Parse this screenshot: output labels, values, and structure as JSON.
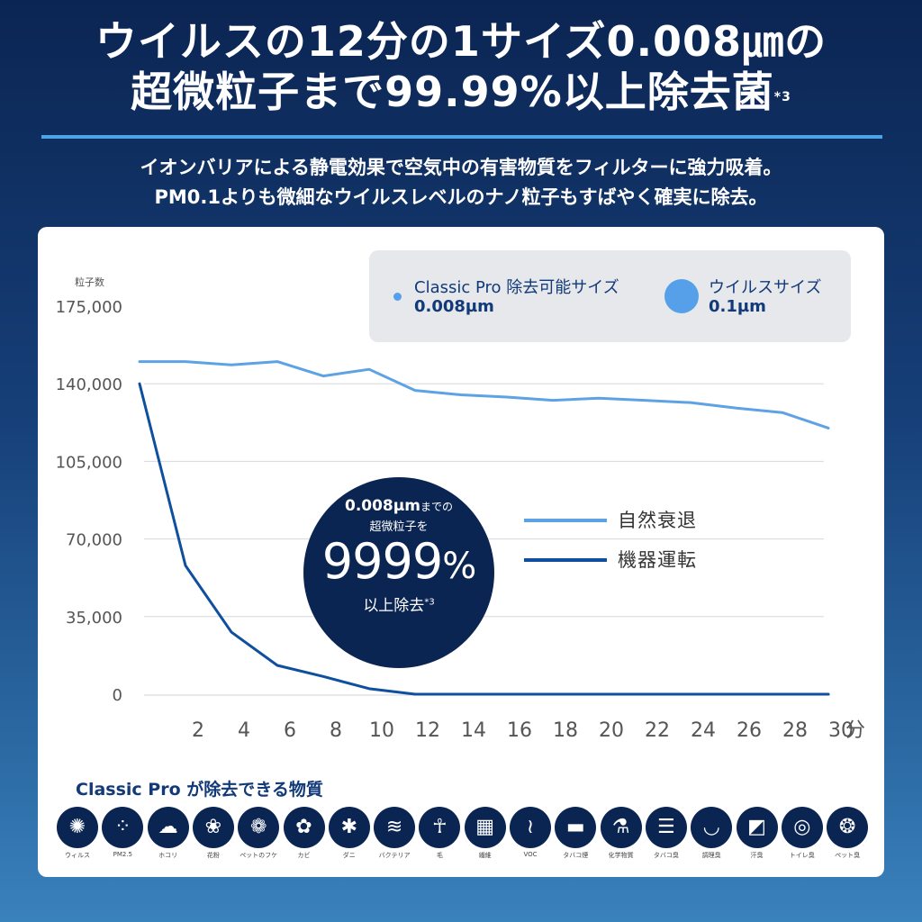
{
  "headline": {
    "line1": "ウイルスの12分の1サイズ0.008㎛の",
    "line2": "超微粒子まで99.99%以上除去菌",
    "line2_sup": "*3"
  },
  "subheadline": {
    "line1": "イオンバリアによる静電効果で空気中の有害物質をフィルターに強力吸着。",
    "line2": "PM0.1よりも微細なウイルスレベルのナノ粒子もすばやく確実に除去。"
  },
  "size_legend": {
    "item1_label": "Classic Pro 除去可能サイズ",
    "item1_value": "0.008µm",
    "item2_label": "ウイルスサイズ",
    "item2_value": "0.1µm"
  },
  "badge": {
    "line1_main": "0.008µm",
    "line1_small": "までの",
    "line2": "超微粒子を",
    "big_main": "9999",
    "big_pct": "%",
    "line4": "以上除去",
    "line4_sup": "*3"
  },
  "colors": {
    "natural": "#5ea2e6",
    "device": "#0f4fa0",
    "navy": "#0b2553"
  },
  "chart_data": {
    "type": "line",
    "ylabel": "粒子数",
    "x_unit": "分",
    "x": [
      0,
      2,
      4,
      6,
      8,
      10,
      12,
      14,
      16,
      18,
      20,
      22,
      24,
      26,
      28,
      30
    ],
    "x_tick_labels": [
      "2",
      "4",
      "6",
      "8",
      "10",
      "12",
      "14",
      "16",
      "18",
      "20",
      "22",
      "24",
      "26",
      "28",
      "30"
    ],
    "yticks": [
      "0",
      "35,000",
      "70,000",
      "105,000",
      "140,000",
      "175,000"
    ],
    "ylim": [
      0,
      175000
    ],
    "grid": true,
    "legend_position": "center-right",
    "series": [
      {
        "name": "自然衰退",
        "color": "#5ea2e6",
        "x": [
          0,
          2,
          4,
          6,
          8,
          10,
          12,
          14,
          16,
          18,
          20,
          22,
          24,
          26,
          28,
          30
        ],
        "values": [
          150000,
          150000,
          148500,
          150000,
          143500,
          146500,
          137000,
          135000,
          134000,
          132500,
          133500,
          132500,
          131500,
          129000,
          127000,
          120000
        ]
      },
      {
        "name": "機器運転",
        "color": "#0f4fa0",
        "x": [
          0,
          2,
          4,
          6,
          8,
          10,
          12,
          14,
          16,
          18,
          20,
          22,
          24,
          26,
          28,
          30
        ],
        "values": [
          140000,
          58000,
          28000,
          13000,
          8000,
          2500,
          0,
          0,
          0,
          0,
          0,
          0,
          0,
          0,
          0,
          0
        ]
      }
    ]
  },
  "substances": {
    "title": "Classic Pro が除去できる物質",
    "items": [
      {
        "label": "ウィルス",
        "icon": "virus-icon"
      },
      {
        "label": "PM2.5",
        "icon": "particles-icon"
      },
      {
        "label": "ホコリ",
        "icon": "dust-icon"
      },
      {
        "label": "花粉",
        "icon": "flower-icon"
      },
      {
        "label": "ペットのフケ",
        "icon": "paw-icon"
      },
      {
        "label": "カビ",
        "icon": "mold-icon"
      },
      {
        "label": "ダニ",
        "icon": "mite-icon"
      },
      {
        "label": "バクテリア",
        "icon": "bacteria-icon"
      },
      {
        "label": "毛",
        "icon": "hair-icon"
      },
      {
        "label": "繊維",
        "icon": "fiber-icon"
      },
      {
        "label": "VOC",
        "icon": "voc-icon"
      },
      {
        "label": "タバコ煙",
        "icon": "cigarette-icon"
      },
      {
        "label": "化学物質",
        "icon": "flask-icon"
      },
      {
        "label": "タバコ臭",
        "icon": "cigarette-smell-icon"
      },
      {
        "label": "調理臭",
        "icon": "bowl-icon"
      },
      {
        "label": "汗臭",
        "icon": "shirt-icon"
      },
      {
        "label": "トイレ臭",
        "icon": "toilet-paper-icon"
      },
      {
        "label": "ペット臭",
        "icon": "pet-smell-icon"
      }
    ]
  }
}
